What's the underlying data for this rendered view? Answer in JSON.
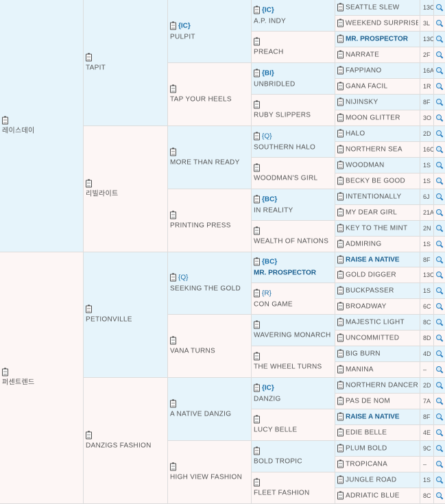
{
  "gen1": [
    {
      "name": "레이스데이"
    },
    {
      "name": "퍼센트렌드"
    }
  ],
  "gen2": [
    {
      "name": "TAPIT"
    },
    {
      "name": "리빌라이트"
    },
    {
      "name": "PETIONVILLE"
    },
    {
      "name": "DANZIGS FASHION"
    }
  ],
  "gen3": [
    {
      "name": "PULPIT",
      "badge": "{IC}"
    },
    {
      "name": "TAP YOUR HEELS",
      "badge": ""
    },
    {
      "name": "MORE THAN READY",
      "badge": ""
    },
    {
      "name": "PRINTING PRESS",
      "badge": ""
    },
    {
      "name": "SEEKING THE GOLD",
      "badge": "{Q}"
    },
    {
      "name": "VANA TURNS",
      "badge": ""
    },
    {
      "name": "A NATIVE DANZIG",
      "badge": ""
    },
    {
      "name": "HIGH VIEW FASHION",
      "badge": ""
    }
  ],
  "gen4": [
    {
      "name": "A.P. INDY",
      "badge": "{IC}",
      "link": false
    },
    {
      "name": "PREACH",
      "badge": "",
      "link": false
    },
    {
      "name": "UNBRIDLED",
      "badge": "{BI}",
      "link": false
    },
    {
      "name": "RUBY SLIPPERS",
      "badge": "",
      "link": false
    },
    {
      "name": "SOUTHERN HALO",
      "badge": "{Q}",
      "link": false
    },
    {
      "name": "WOODMAN'S GIRL",
      "badge": "",
      "link": false
    },
    {
      "name": "IN REALITY",
      "badge": "{BC}",
      "link": false
    },
    {
      "name": "WEALTH OF NATIONS",
      "badge": "",
      "link": false
    },
    {
      "name": "MR. PROSPECTOR",
      "badge": "{BC}",
      "link": true
    },
    {
      "name": "CON GAME",
      "badge": "{R}",
      "link": false
    },
    {
      "name": "WAVERING MONARCH",
      "badge": "",
      "link": false
    },
    {
      "name": "THE WHEEL TURNS",
      "badge": "",
      "link": false
    },
    {
      "name": "DANZIG",
      "badge": "{IC}",
      "link": false
    },
    {
      "name": "LUCY BELLE",
      "badge": "",
      "link": false
    },
    {
      "name": "BOLD TROPIC",
      "badge": "",
      "link": false
    },
    {
      "name": "FLEET FASHION",
      "badge": "",
      "link": false
    }
  ],
  "gen5": [
    {
      "name": "SEATTLE SLEW",
      "code": "13C",
      "link": false
    },
    {
      "name": "WEEKEND SURPRISE",
      "code": "3L",
      "link": false
    },
    {
      "name": "MR. PROSPECTOR",
      "code": "13C",
      "link": true
    },
    {
      "name": "NARRATE",
      "code": "2F",
      "link": false
    },
    {
      "name": "FAPPIANO",
      "code": "16A",
      "link": false
    },
    {
      "name": "GANA FACIL",
      "code": "1R",
      "link": false
    },
    {
      "name": "NIJINSKY",
      "code": "8F",
      "link": false
    },
    {
      "name": "MOON GLITTER",
      "code": "3O",
      "link": false
    },
    {
      "name": "HALO",
      "code": "2D",
      "link": false
    },
    {
      "name": "NORTHERN SEA",
      "code": "16C",
      "link": false
    },
    {
      "name": "WOODMAN",
      "code": "1S",
      "link": false
    },
    {
      "name": "BECKY BE GOOD",
      "code": "1S",
      "link": false
    },
    {
      "name": "INTENTIONALLY",
      "code": "6J",
      "link": false
    },
    {
      "name": "MY DEAR GIRL",
      "code": "21A",
      "link": false
    },
    {
      "name": "KEY TO THE MINT",
      "code": "2N",
      "link": false
    },
    {
      "name": "ADMIRING",
      "code": "1S",
      "link": false
    },
    {
      "name": "RAISE A NATIVE",
      "code": "8F",
      "link": true
    },
    {
      "name": "GOLD DIGGER",
      "code": "13C",
      "link": false
    },
    {
      "name": "BUCKPASSER",
      "code": "1S",
      "link": false
    },
    {
      "name": "BROADWAY",
      "code": "6C",
      "link": false
    },
    {
      "name": "MAJESTIC LIGHT",
      "code": "8C",
      "link": false
    },
    {
      "name": "UNCOMMITTED",
      "code": "8D",
      "link": false
    },
    {
      "name": "BIG BURN",
      "code": "4D",
      "link": false
    },
    {
      "name": "MANINA",
      "code": "–",
      "link": false
    },
    {
      "name": "NORTHERN DANCER",
      "code": "2D",
      "link": false
    },
    {
      "name": "PAS DE NOM",
      "code": "7A",
      "link": false
    },
    {
      "name": "RAISE A NATIVE",
      "code": "8F",
      "link": true
    },
    {
      "name": "EDIE BELLE",
      "code": "4E",
      "link": false
    },
    {
      "name": "PLUM BOLD",
      "code": "9C",
      "link": false
    },
    {
      "name": "TROPICANA",
      "code": "–",
      "link": false
    },
    {
      "name": "JUNGLE ROAD",
      "code": "1S",
      "link": false
    },
    {
      "name": "ADRIATIC BLUE",
      "code": "8C",
      "link": false
    }
  ]
}
